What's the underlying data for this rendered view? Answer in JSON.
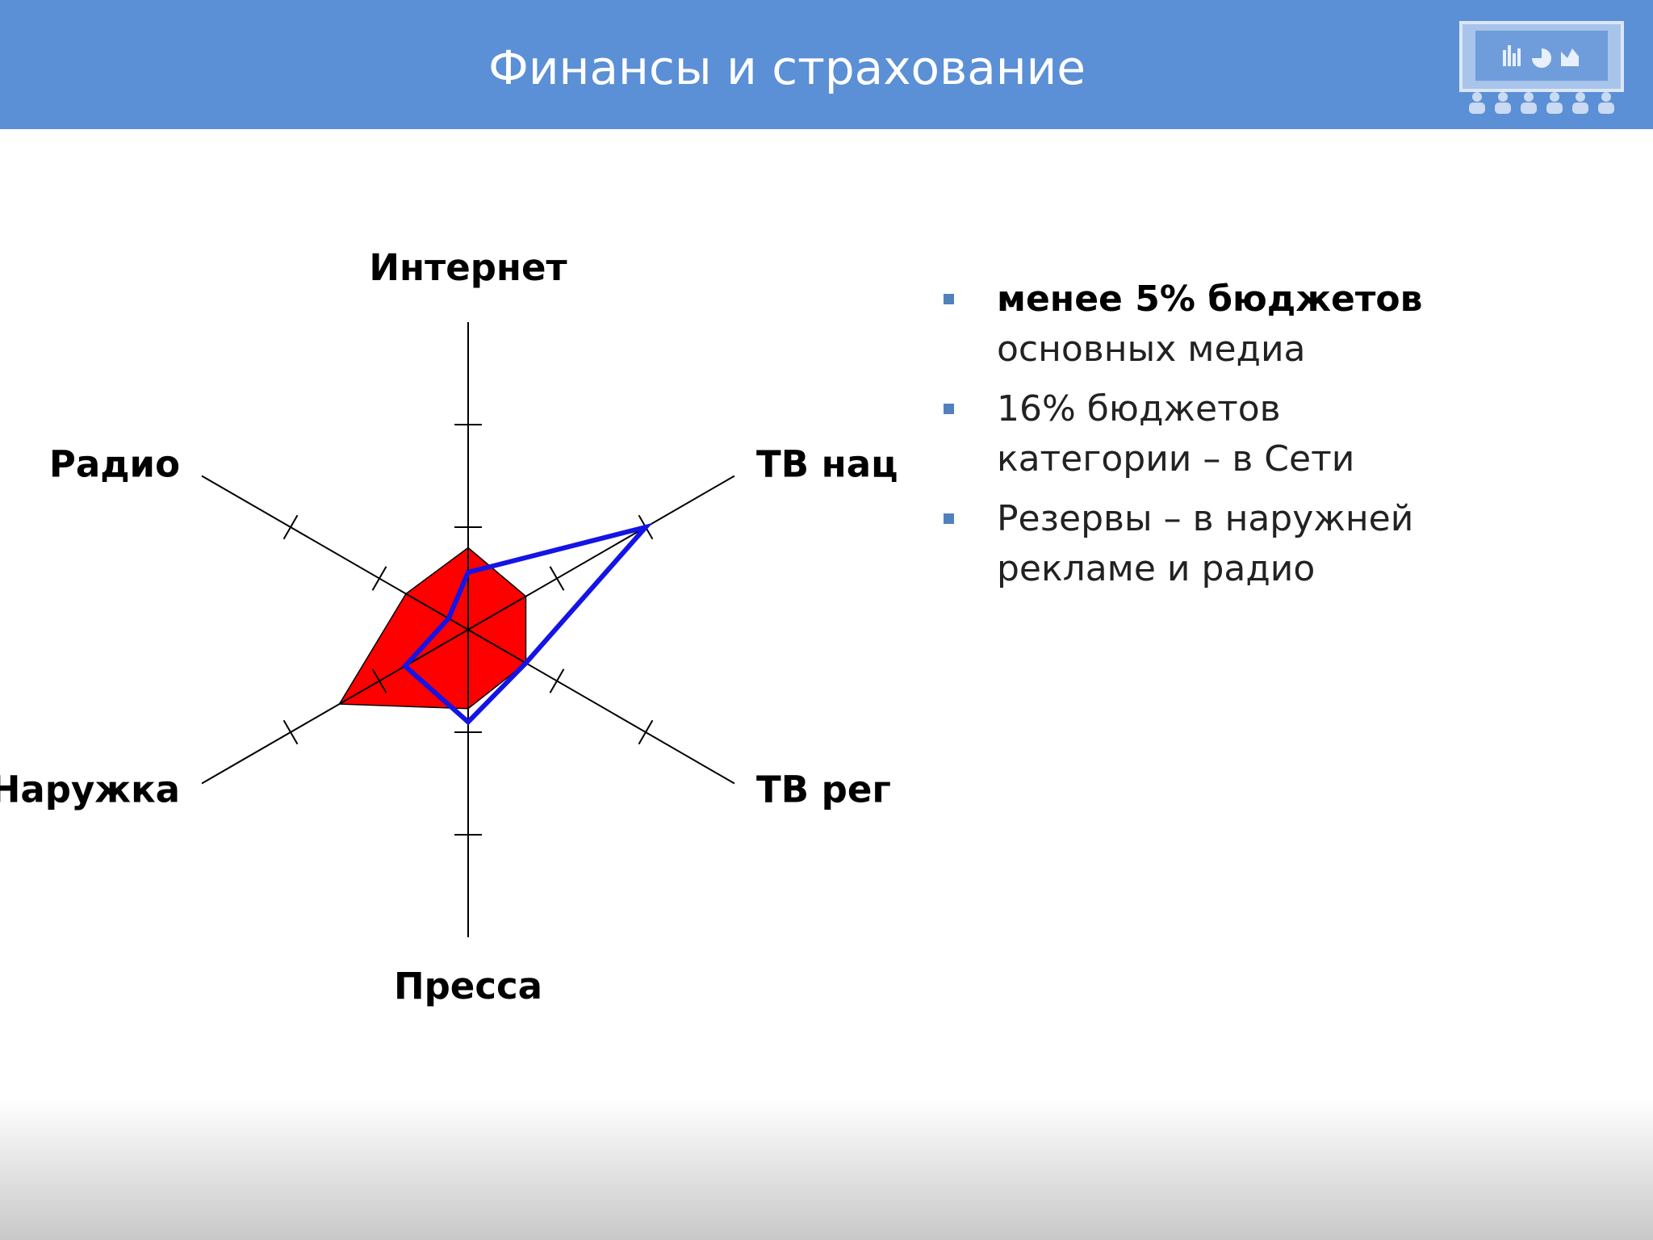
{
  "header": {
    "title": "Финансы и страхование"
  },
  "chart_data": {
    "type": "radar",
    "categories": [
      "Интернет",
      "ТВ нац",
      "ТВ рег",
      "Пресса",
      "Наружка",
      "Радио"
    ],
    "series": [
      {
        "color": "#ff0000",
        "values": [
          0.8,
          0.65,
          0.65,
          0.77,
          1.45,
          0.7
        ]
      },
      {
        "color": "#1414e6",
        "values": [
          0.56,
          2.0,
          0.65,
          0.9,
          0.71,
          0.22
        ]
      }
    ],
    "rlim": [
      0,
      3
    ],
    "rticks": [
      1,
      2
    ]
  },
  "bullets": [
    {
      "lines": [
        "менее 5% бюджетов",
        "основных медиа"
      ]
    },
    {
      "lines": [
        "16% бюджетов",
        "категории – в Сети"
      ]
    },
    {
      "lines": [
        "Резервы – в наружней",
        "рекламе и радио"
      ]
    }
  ]
}
